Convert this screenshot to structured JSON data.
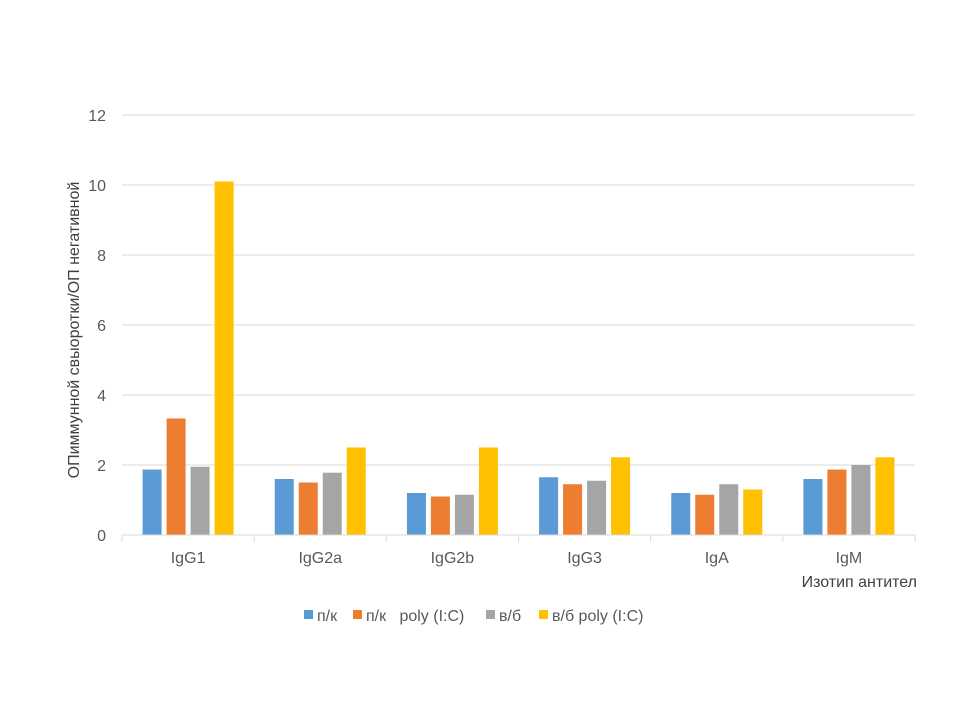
{
  "chart_data": {
    "type": "bar",
    "title": "",
    "xlabel": "Изотип антител",
    "ylabel": "ОПиммунной свыоротки/ОП негативной",
    "ylim": [
      0,
      12
    ],
    "yticks": [
      0,
      2,
      4,
      6,
      8,
      10,
      12
    ],
    "grid": true,
    "legend_position": "bottom",
    "categories": [
      "IgG1",
      "IgG2a",
      "IgG2b",
      "IgG3",
      "IgA",
      "IgM"
    ],
    "series": [
      {
        "name": "п/к",
        "color": "#5B9BD5",
        "values": [
          1.87,
          1.6,
          1.2,
          1.65,
          1.2,
          1.6
        ]
      },
      {
        "name": "п/к   poly (I:C)",
        "color": "#ED7D31",
        "values": [
          3.33,
          1.5,
          1.1,
          1.45,
          1.15,
          1.87
        ]
      },
      {
        "name": "в/б",
        "color": "#A5A5A5",
        "values": [
          1.95,
          1.78,
          1.15,
          1.55,
          1.45,
          2.0
        ]
      },
      {
        "name": "в/б poly (I:C)",
        "color": "#FFC000",
        "values": [
          10.1,
          2.5,
          2.5,
          2.22,
          1.3,
          2.22
        ]
      }
    ]
  }
}
